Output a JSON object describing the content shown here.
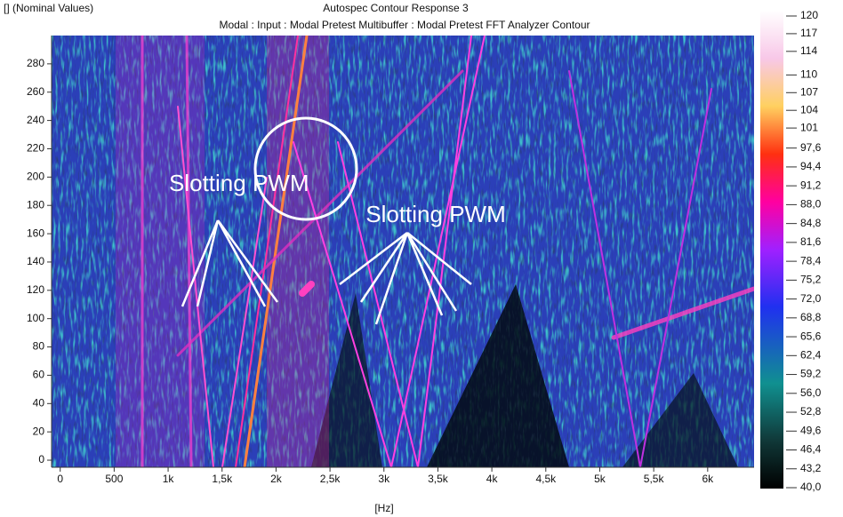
{
  "chart_data": {
    "type": "contour",
    "corner_label": "[] (Nominal Values)",
    "title": "Autospec Contour Response 3",
    "subtitle": "Modal : Input : Modal Pretest Multibuffer : Modal Pretest FFT Analyzer Contour",
    "xlabel": "[Hz]",
    "xlim": [
      -80,
      6430
    ],
    "xticks": [
      0,
      500,
      {
        "value": 1000,
        "label": "1k"
      },
      {
        "value": 1500,
        "label": "1,5k"
      },
      {
        "value": 2000,
        "label": "2k"
      },
      {
        "value": 2500,
        "label": "2,5k"
      },
      {
        "value": 3000,
        "label": "3k"
      },
      {
        "value": 3500,
        "label": "3,5k"
      },
      {
        "value": 4000,
        "label": "4k"
      },
      {
        "value": 4500,
        "label": "4,5k"
      },
      {
        "value": 5000,
        "label": "5k"
      },
      {
        "value": 5500,
        "label": "5,5k"
      },
      {
        "value": 6000,
        "label": "6k"
      }
    ],
    "ylim": [
      -5,
      300
    ],
    "yticks": [
      0,
      20,
      40,
      60,
      80,
      100,
      120,
      140,
      160,
      180,
      200,
      220,
      240,
      260,
      280
    ],
    "clim": [
      40,
      120
    ],
    "cticks": [
      120,
      117,
      114,
      110,
      107,
      104,
      101,
      {
        "value": 97.6,
        "label": "97,6"
      },
      {
        "value": 94.4,
        "label": "94,4"
      },
      {
        "value": 91.2,
        "label": "91,2"
      },
      {
        "value": 88.0,
        "label": "88,0"
      },
      {
        "value": 84.8,
        "label": "84,8"
      },
      {
        "value": 81.6,
        "label": "81,6"
      },
      {
        "value": 78.4,
        "label": "78,4"
      },
      {
        "value": 75.2,
        "label": "75,2"
      },
      {
        "value": 72.0,
        "label": "72,0"
      },
      {
        "value": 68.8,
        "label": "68,8"
      },
      {
        "value": 65.6,
        "label": "65,6"
      },
      {
        "value": 62.4,
        "label": "62,4"
      },
      {
        "value": 59.2,
        "label": "59,2"
      },
      {
        "value": 56.0,
        "label": "56,0"
      },
      {
        "value": 52.8,
        "label": "52,8"
      },
      {
        "value": 49.6,
        "label": "49,6"
      },
      {
        "value": 46.4,
        "label": "46,4"
      },
      {
        "value": 43.2,
        "label": "43,2"
      },
      {
        "value": 40.0,
        "label": "40,0"
      }
    ],
    "annotations": [
      "Slotting PWM",
      "Slotting PWM"
    ]
  }
}
